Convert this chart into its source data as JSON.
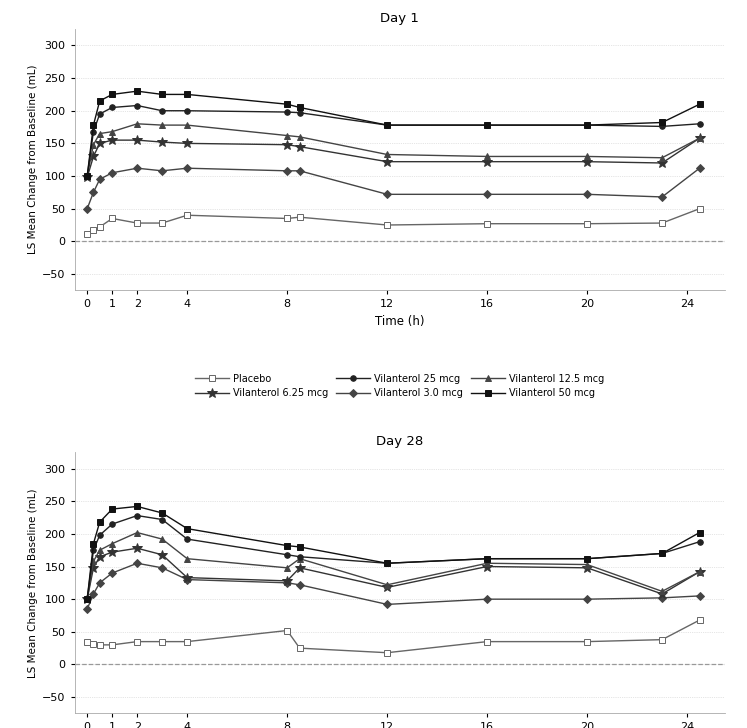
{
  "title1": "Day 1",
  "title2": "Day 28",
  "ylabel": "LS Mean Change from Baseline (mL)",
  "xlabel": "Time (h)",
  "xticks": [
    0,
    1,
    2,
    4,
    8,
    12,
    16,
    20,
    24
  ],
  "xlim": [
    -0.5,
    25.5
  ],
  "ylim": [
    -75,
    325
  ],
  "yticks": [
    -50,
    0,
    50,
    100,
    150,
    200,
    250,
    300
  ],
  "day1": {
    "placebo": {
      "x": [
        0,
        0.25,
        0.5,
        1,
        2,
        3,
        4,
        8,
        8.5,
        12,
        16,
        20,
        23,
        24.5
      ],
      "y": [
        12,
        18,
        22,
        35,
        28,
        28,
        40,
        35,
        37,
        25,
        27,
        27,
        28,
        50
      ]
    },
    "vil3": {
      "x": [
        0,
        0.25,
        0.5,
        1,
        2,
        3,
        4,
        8,
        8.5,
        12,
        16,
        20,
        23,
        24.5
      ],
      "y": [
        50,
        75,
        95,
        105,
        112,
        108,
        112,
        108,
        108,
        72,
        72,
        72,
        68,
        112
      ]
    },
    "vil6p25": {
      "x": [
        0,
        0.25,
        0.5,
        1,
        2,
        3,
        4,
        8,
        8.5,
        12,
        16,
        20,
        23,
        24.5
      ],
      "y": [
        98,
        130,
        150,
        155,
        155,
        152,
        150,
        148,
        145,
        122,
        122,
        122,
        120,
        158
      ]
    },
    "vil12p5": {
      "x": [
        0,
        0.25,
        0.5,
        1,
        2,
        3,
        4,
        8,
        8.5,
        12,
        16,
        20,
        23,
        24.5
      ],
      "y": [
        100,
        148,
        165,
        168,
        180,
        178,
        178,
        162,
        160,
        133,
        130,
        130,
        128,
        158
      ]
    },
    "vil25": {
      "x": [
        0,
        0.25,
        0.5,
        1,
        2,
        3,
        4,
        8,
        8.5,
        12,
        16,
        20,
        23,
        24.5
      ],
      "y": [
        100,
        168,
        195,
        205,
        208,
        200,
        200,
        198,
        197,
        178,
        178,
        178,
        176,
        180
      ]
    },
    "vil50": {
      "x": [
        0,
        0.25,
        0.5,
        1,
        2,
        3,
        4,
        8,
        8.5,
        12,
        16,
        20,
        23,
        24.5
      ],
      "y": [
        100,
        178,
        215,
        225,
        230,
        225,
        225,
        210,
        205,
        178,
        178,
        178,
        182,
        210
      ]
    }
  },
  "day28": {
    "placebo": {
      "x": [
        0,
        0.25,
        0.5,
        1,
        2,
        3,
        4,
        8,
        8.5,
        12,
        16,
        20,
        23,
        24.5
      ],
      "y": [
        35,
        32,
        30,
        30,
        35,
        35,
        35,
        52,
        25,
        18,
        35,
        35,
        38,
        68
      ]
    },
    "vil3": {
      "x": [
        0,
        0.25,
        0.5,
        1,
        2,
        3,
        4,
        8,
        8.5,
        12,
        16,
        20,
        23,
        24.5
      ],
      "y": [
        85,
        108,
        125,
        140,
        155,
        148,
        130,
        125,
        122,
        92,
        100,
        100,
        102,
        105
      ]
    },
    "vil6p25": {
      "x": [
        0,
        0.25,
        0.5,
        1,
        2,
        3,
        4,
        8,
        8.5,
        12,
        16,
        20,
        23,
        24.5
      ],
      "y": [
        100,
        148,
        165,
        172,
        178,
        168,
        133,
        128,
        148,
        118,
        150,
        148,
        108,
        142
      ]
    },
    "vil12p5": {
      "x": [
        0,
        0.25,
        0.5,
        1,
        2,
        3,
        4,
        8,
        8.5,
        12,
        16,
        20,
        23,
        24.5
      ],
      "y": [
        100,
        158,
        175,
        185,
        202,
        192,
        162,
        148,
        162,
        122,
        155,
        153,
        112,
        142
      ]
    },
    "vil25": {
      "x": [
        0,
        0.25,
        0.5,
        1,
        2,
        3,
        4,
        8,
        8.5,
        12,
        16,
        20,
        23,
        24.5
      ],
      "y": [
        100,
        175,
        198,
        215,
        228,
        222,
        192,
        168,
        165,
        155,
        162,
        162,
        170,
        188
      ]
    },
    "vil50": {
      "x": [
        0,
        0.25,
        0.5,
        1,
        2,
        3,
        4,
        8,
        8.5,
        12,
        16,
        20,
        23,
        24.5
      ],
      "y": [
        100,
        185,
        218,
        238,
        242,
        232,
        208,
        182,
        180,
        155,
        162,
        162,
        170,
        202
      ]
    }
  },
  "series_styles": {
    "placebo": {
      "color": "#666666",
      "marker": "s",
      "marker_size": 4,
      "mfc": "white",
      "mec": "#666666",
      "lw": 1.0
    },
    "vil3": {
      "color": "#444444",
      "marker": "D",
      "marker_size": 4,
      "mfc": "#444444",
      "mec": "#444444",
      "lw": 1.0
    },
    "vil6p25": {
      "color": "#333333",
      "marker": "*",
      "marker_size": 7,
      "mfc": "#333333",
      "mec": "#333333",
      "lw": 1.0
    },
    "vil12p5": {
      "color": "#444444",
      "marker": "^",
      "marker_size": 4,
      "mfc": "#444444",
      "mec": "#444444",
      "lw": 1.0
    },
    "vil25": {
      "color": "#222222",
      "marker": "o",
      "marker_size": 4,
      "mfc": "#222222",
      "mec": "#222222",
      "lw": 1.0
    },
    "vil50": {
      "color": "#111111",
      "marker": "s",
      "marker_size": 4,
      "mfc": "#111111",
      "mec": "#111111",
      "lw": 1.0
    }
  },
  "legend_entries": [
    {
      "label": "Placebo",
      "marker": "s",
      "mfc": "white",
      "mec": "#666666",
      "color": "#666666"
    },
    {
      "label": "Vilanterol 6.25 mcg",
      "marker": "*",
      "mfc": "#333333",
      "mec": "#333333",
      "color": "#333333"
    },
    {
      "label": "Vilanterol 25 mcg",
      "marker": "o",
      "mfc": "#222222",
      "mec": "#222222",
      "color": "#222222"
    },
    {
      "label": "Vilanterol 3.0 mcg",
      "marker": "D",
      "mfc": "#444444",
      "mec": "#444444",
      "color": "#444444"
    },
    {
      "label": "Vilanterol 12.5 mcg",
      "marker": "^",
      "mfc": "#444444",
      "mec": "#444444",
      "color": "#444444"
    },
    {
      "label": "Vilanterol 50 mcg",
      "marker": "s",
      "mfc": "#111111",
      "mec": "#111111",
      "color": "#111111"
    }
  ],
  "bg_color": "#ffffff",
  "grid_color": "#cccccc",
  "dashed_line_color": "#999999"
}
